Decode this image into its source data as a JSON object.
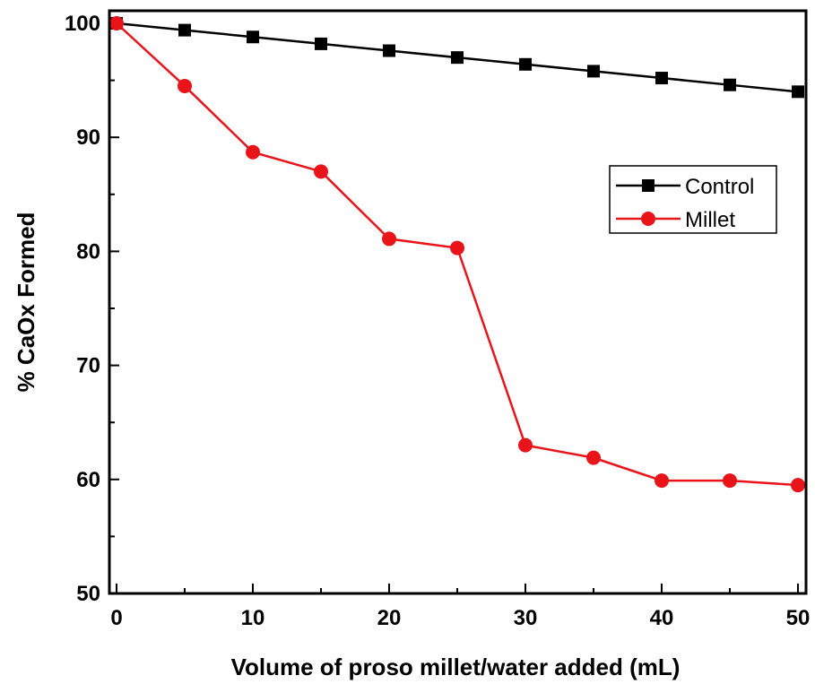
{
  "chart_data": {
    "type": "line",
    "title": "",
    "xlabel": "Volume of proso millet/water added (mL)",
    "ylabel": "% CaOx Formed",
    "xlim": [
      0,
      50
    ],
    "ylim": [
      50,
      100
    ],
    "x_ticks": [
      "0",
      "10",
      "20",
      "30",
      "40",
      "50"
    ],
    "y_ticks": [
      "50",
      "60",
      "70",
      "80",
      "90",
      "100"
    ],
    "grid": false,
    "legend_position": "right",
    "x": [
      0,
      5,
      10,
      15,
      20,
      25,
      30,
      35,
      40,
      45,
      50
    ],
    "series": [
      {
        "name": "Control",
        "color": "#000000",
        "marker": "square",
        "values": [
          100,
          99.4,
          98.8,
          98.2,
          97.6,
          97.0,
          96.4,
          95.8,
          95.2,
          94.6,
          94.0
        ]
      },
      {
        "name": "Millet",
        "color": "#e8141a",
        "marker": "circle",
        "values": [
          100,
          94.5,
          88.7,
          87.0,
          81.1,
          80.3,
          63.0,
          61.9,
          59.9,
          59.9,
          59.5
        ]
      }
    ]
  }
}
